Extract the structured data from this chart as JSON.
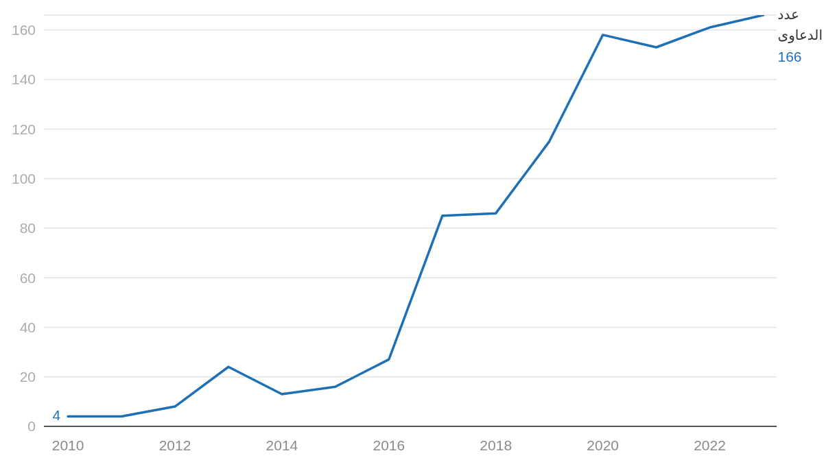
{
  "chart_data": {
    "type": "line",
    "x": [
      2010,
      2011,
      2012,
      2013,
      2014,
      2015,
      2016,
      2017,
      2018,
      2019,
      2020,
      2021,
      2022,
      2023
    ],
    "series": [
      {
        "name": "عدد الدعاوى",
        "color": "#1f6fb4",
        "values": [
          4,
          4,
          8,
          24,
          13,
          16,
          27,
          85,
          86,
          115,
          158,
          153,
          161,
          166
        ],
        "value_labels": [
          "4",
          null,
          null,
          null,
          null,
          null,
          null,
          null,
          null,
          null,
          null,
          null,
          null,
          "166"
        ]
      }
    ],
    "xlim": [
      2009.55,
      2023.25
    ],
    "xticks": [
      2010,
      2012,
      2014,
      2016,
      2018,
      2020,
      2022
    ],
    "ylim": [
      0,
      166
    ],
    "yticks": [
      0,
      20,
      40,
      60,
      80,
      100,
      120,
      140,
      160
    ],
    "grid": "y",
    "marker": "none",
    "line_style": "solid"
  }
}
